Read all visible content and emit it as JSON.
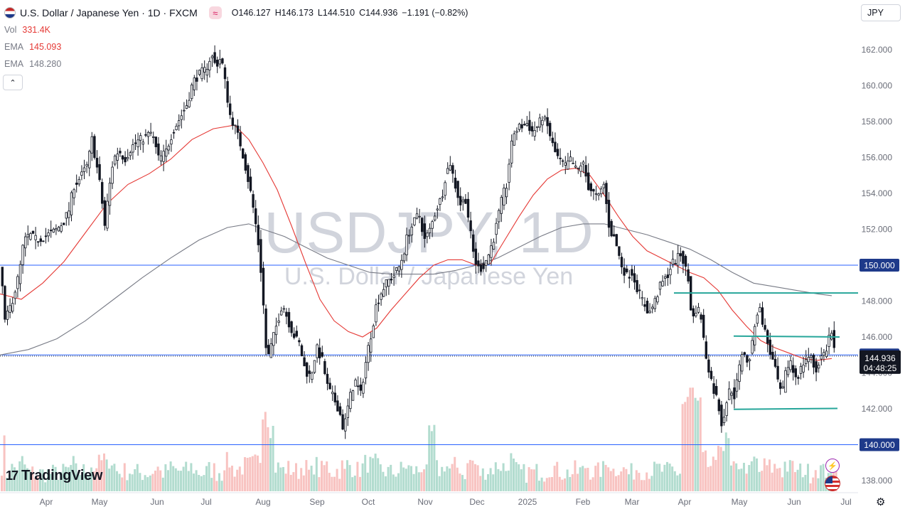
{
  "header": {
    "title": "U.S. Dollar / Japanese Yen · 1D · FXCM",
    "ohlc": [
      {
        "key": "O",
        "value": "146.127"
      },
      {
        "key": "H",
        "value": "146.173"
      },
      {
        "key": "L",
        "value": "144.510"
      },
      {
        "key": "C",
        "value": "144.936"
      }
    ],
    "change": "−1.191 (−0.82%)",
    "currency_button": "JPY",
    "collapse_glyph": "⌃"
  },
  "indicators": [
    {
      "label": "Vol",
      "value": "331.4K",
      "color": "#e53935"
    },
    {
      "label": "EMA",
      "value": "145.093",
      "color": "#e53935"
    },
    {
      "label": "EMA",
      "value": "148.280",
      "color": "#787b86"
    }
  ],
  "watermark": {
    "symbol": "USDJPY, 1D",
    "name": "U.S. Dollar / Japanese Yen"
  },
  "branding": {
    "logo_mark": "17",
    "logo_text": "TradingView"
  },
  "icons": {
    "bolt": "bolt-icon",
    "flag": "us-flag-icon",
    "settings": "gear-icon"
  },
  "colors": {
    "up": "#089981",
    "down": "#f23645",
    "ema_fast": "#e53935",
    "ema_slow": "#787b86",
    "hline": "#2962ff",
    "trend": "#26a69a",
    "price_tag": "#131722",
    "level_tag": "#1e3a8a"
  },
  "chart_data": {
    "type": "candlestick",
    "symbol": "USDJPY",
    "interval": "1D",
    "y_ticks": [
      "162.000",
      "160.000",
      "158.000",
      "156.000",
      "154.000",
      "152.000",
      "150.000",
      "148.000",
      "146.000",
      "144.000",
      "142.000",
      "140.000",
      "138.000"
    ],
    "x_ticks": [
      "Apr",
      "May",
      "Jun",
      "Jul",
      "Aug",
      "Sep",
      "Oct",
      "Nov",
      "Dec",
      "2025",
      "Feb",
      "Mar",
      "Apr",
      "May",
      "Jun",
      "Jul"
    ],
    "ylim": [
      137.8,
      164.0
    ],
    "price_path": [
      [
        0,
        150.1
      ],
      [
        5,
        146.8
      ],
      [
        10,
        147.3
      ],
      [
        18,
        148.3
      ],
      [
        26,
        149.6
      ],
      [
        32,
        151.3
      ],
      [
        40,
        151.7
      ],
      [
        50,
        151.4
      ],
      [
        62,
        151.6
      ],
      [
        76,
        151.9
      ],
      [
        88,
        152.4
      ],
      [
        96,
        153.1
      ],
      [
        102,
        154.4
      ],
      [
        112,
        154.9
      ],
      [
        122,
        155.6
      ],
      [
        128,
        157.0
      ],
      [
        134,
        155.7
      ],
      [
        140,
        154.3
      ],
      [
        146,
        152.2
      ],
      [
        150,
        153.6
      ],
      [
        158,
        155.9
      ],
      [
        166,
        156.4
      ],
      [
        174,
        155.9
      ],
      [
        184,
        156.6
      ],
      [
        192,
        156.9
      ],
      [
        202,
        157.1
      ],
      [
        212,
        157.4
      ],
      [
        222,
        155.9
      ],
      [
        232,
        156.3
      ],
      [
        242,
        157.5
      ],
      [
        252,
        158.2
      ],
      [
        262,
        159.0
      ],
      [
        270,
        160.2
      ],
      [
        278,
        160.6
      ],
      [
        288,
        160.9
      ],
      [
        296,
        161.7
      ],
      [
        302,
        161.1
      ],
      [
        310,
        161.6
      ],
      [
        316,
        160.0
      ],
      [
        322,
        158.4
      ],
      [
        330,
        157.6
      ],
      [
        338,
        156.6
      ],
      [
        346,
        155.1
      ],
      [
        352,
        153.9
      ],
      [
        358,
        152.4
      ],
      [
        364,
        150.6
      ],
      [
        370,
        147.3
      ],
      [
        374,
        144.6
      ],
      [
        380,
        145.5
      ],
      [
        388,
        146.7
      ],
      [
        396,
        147.9
      ],
      [
        404,
        146.9
      ],
      [
        412,
        146.1
      ],
      [
        420,
        145.6
      ],
      [
        428,
        144.1
      ],
      [
        436,
        143.8
      ],
      [
        444,
        145.4
      ],
      [
        452,
        144.7
      ],
      [
        460,
        143.1
      ],
      [
        468,
        142.6
      ],
      [
        476,
        141.9
      ],
      [
        482,
        140.8
      ],
      [
        490,
        142.5
      ],
      [
        498,
        143.6
      ],
      [
        506,
        142.8
      ],
      [
        512,
        144.3
      ],
      [
        518,
        145.7
      ],
      [
        522,
        146.4
      ],
      [
        528,
        147.8
      ],
      [
        536,
        148.6
      ],
      [
        544,
        149.1
      ],
      [
        552,
        149.4
      ],
      [
        560,
        149.9
      ],
      [
        566,
        150.6
      ],
      [
        572,
        151.7
      ],
      [
        580,
        152.3
      ],
      [
        588,
        152.9
      ],
      [
        596,
        151.4
      ],
      [
        604,
        152.0
      ],
      [
        612,
        153.1
      ],
      [
        620,
        153.8
      ],
      [
        626,
        155.1
      ],
      [
        632,
        155.7
      ],
      [
        638,
        154.6
      ],
      [
        646,
        153.4
      ],
      [
        654,
        153.7
      ],
      [
        660,
        151.9
      ],
      [
        666,
        150.3
      ],
      [
        672,
        149.8
      ],
      [
        678,
        149.9
      ],
      [
        686,
        150.6
      ],
      [
        694,
        151.6
      ],
      [
        700,
        152.8
      ],
      [
        706,
        153.9
      ],
      [
        712,
        154.5
      ],
      [
        716,
        156.2
      ],
      [
        722,
        157.4
      ],
      [
        730,
        157.7
      ],
      [
        740,
        157.9
      ],
      [
        748,
        157.4
      ],
      [
        756,
        157.8
      ],
      [
        762,
        158.3
      ],
      [
        770,
        157.6
      ],
      [
        778,
        156.4
      ],
      [
        786,
        155.8
      ],
      [
        794,
        155.5
      ],
      [
        802,
        155.9
      ],
      [
        810,
        155.2
      ],
      [
        818,
        155.8
      ],
      [
        826,
        154.4
      ],
      [
        832,
        154.1
      ],
      [
        840,
        153.7
      ],
      [
        848,
        154.5
      ],
      [
        856,
        152.0
      ],
      [
        864,
        151.4
      ],
      [
        872,
        150.1
      ],
      [
        880,
        149.4
      ],
      [
        888,
        149.6
      ],
      [
        896,
        148.6
      ],
      [
        904,
        147.9
      ],
      [
        912,
        147.3
      ],
      [
        920,
        148.0
      ],
      [
        928,
        148.9
      ],
      [
        936,
        149.3
      ],
      [
        944,
        150.1
      ],
      [
        950,
        150.3
      ],
      [
        956,
        150.6
      ],
      [
        962,
        150.0
      ],
      [
        968,
        148.9
      ],
      [
        972,
        146.8
      ],
      [
        978,
        147.6
      ],
      [
        984,
        147.4
      ],
      [
        990,
        145.3
      ],
      [
        996,
        144.2
      ],
      [
        1002,
        143.1
      ],
      [
        1008,
        142.5
      ],
      [
        1014,
        141.1
      ],
      [
        1020,
        142.3
      ],
      [
        1026,
        143.2
      ],
      [
        1032,
        142.7
      ],
      [
        1038,
        144.1
      ],
      [
        1044,
        145.5
      ],
      [
        1050,
        144.4
      ],
      [
        1056,
        145.3
      ],
      [
        1062,
        147.3
      ],
      [
        1068,
        147.5
      ],
      [
        1074,
        146.4
      ],
      [
        1080,
        145.4
      ],
      [
        1086,
        144.6
      ],
      [
        1092,
        143.7
      ],
      [
        1098,
        142.6
      ],
      [
        1104,
        144.0
      ],
      [
        1110,
        144.8
      ],
      [
        1116,
        143.8
      ],
      [
        1122,
        143.9
      ],
      [
        1128,
        144.5
      ],
      [
        1134,
        144.9
      ],
      [
        1140,
        144.8
      ],
      [
        1146,
        144.0
      ],
      [
        1152,
        144.8
      ],
      [
        1158,
        145.1
      ],
      [
        1162,
        145.4
      ],
      [
        1166,
        146.3
      ],
      [
        1170,
        146.1
      ],
      [
        1173,
        144.9
      ]
    ],
    "ema_fast_path": [
      [
        0,
        148.4
      ],
      [
        30,
        148.1
      ],
      [
        60,
        149.0
      ],
      [
        90,
        150.2
      ],
      [
        120,
        151.8
      ],
      [
        150,
        153.4
      ],
      [
        180,
        154.5
      ],
      [
        210,
        155.1
      ],
      [
        240,
        155.9
      ],
      [
        270,
        157.0
      ],
      [
        300,
        157.6
      ],
      [
        330,
        157.8
      ],
      [
        350,
        157.0
      ],
      [
        370,
        155.7
      ],
      [
        390,
        154.2
      ],
      [
        410,
        152.2
      ],
      [
        430,
        150.1
      ],
      [
        450,
        148.1
      ],
      [
        470,
        146.9
      ],
      [
        490,
        146.3
      ],
      [
        510,
        146.0
      ],
      [
        530,
        146.5
      ],
      [
        550,
        147.5
      ],
      [
        570,
        148.4
      ],
      [
        590,
        149.3
      ],
      [
        610,
        150.0
      ],
      [
        630,
        150.3
      ],
      [
        650,
        150.3
      ],
      [
        670,
        150.0
      ],
      [
        690,
        150.1
      ],
      [
        710,
        151.4
      ],
      [
        730,
        152.7
      ],
      [
        750,
        153.9
      ],
      [
        770,
        154.8
      ],
      [
        790,
        155.3
      ],
      [
        810,
        155.4
      ],
      [
        830,
        155.0
      ],
      [
        850,
        153.9
      ],
      [
        870,
        152.7
      ],
      [
        890,
        151.6
      ],
      [
        910,
        150.8
      ],
      [
        930,
        150.4
      ],
      [
        950,
        150.0
      ],
      [
        970,
        149.6
      ],
      [
        990,
        149.3
      ],
      [
        1010,
        148.6
      ],
      [
        1030,
        147.5
      ],
      [
        1050,
        146.6
      ],
      [
        1070,
        145.8
      ],
      [
        1090,
        145.4
      ],
      [
        1110,
        145.1
      ],
      [
        1130,
        144.8
      ],
      [
        1150,
        144.7
      ],
      [
        1170,
        144.8
      ]
    ],
    "ema_slow_path": [
      [
        0,
        145.0
      ],
      [
        40,
        145.3
      ],
      [
        80,
        145.9
      ],
      [
        120,
        146.9
      ],
      [
        160,
        148.1
      ],
      [
        200,
        149.3
      ],
      [
        240,
        150.4
      ],
      [
        280,
        151.4
      ],
      [
        320,
        152.1
      ],
      [
        350,
        152.3
      ],
      [
        370,
        152.0
      ],
      [
        400,
        151.6
      ],
      [
        430,
        151.0
      ],
      [
        460,
        150.4
      ],
      [
        490,
        150.0
      ],
      [
        520,
        149.6
      ],
      [
        550,
        149.5
      ],
      [
        580,
        149.5
      ],
      [
        610,
        149.5
      ],
      [
        640,
        149.7
      ],
      [
        670,
        150.0
      ],
      [
        700,
        150.4
      ],
      [
        730,
        151.0
      ],
      [
        760,
        151.6
      ],
      [
        790,
        152.1
      ],
      [
        820,
        152.3
      ],
      [
        850,
        152.3
      ],
      [
        880,
        152.0
      ],
      [
        910,
        151.7
      ],
      [
        940,
        151.3
      ],
      [
        970,
        150.9
      ],
      [
        1000,
        150.3
      ],
      [
        1030,
        149.6
      ],
      [
        1060,
        149.0
      ],
      [
        1090,
        148.8
      ],
      [
        1120,
        148.6
      ],
      [
        1150,
        148.4
      ],
      [
        1170,
        148.3
      ]
    ],
    "hlines": [
      {
        "price": 150.0,
        "label": "150.000",
        "color": "#2962ff"
      },
      {
        "price": 145.0,
        "label": "145.000",
        "color": "#2962ff"
      },
      {
        "price": 140.0,
        "label": "140.000",
        "color": "#2962ff"
      }
    ],
    "current_price": {
      "price": 144.936,
      "label": "144.936",
      "countdown": "04:48:25"
    },
    "trendlines": [
      {
        "x1": 948,
        "y1": 148.45,
        "x2": 1207,
        "y2": 148.45
      },
      {
        "x1": 1032,
        "y1": 146.05,
        "x2": 1181,
        "y2": 146.0
      },
      {
        "x1": 1032,
        "y1": 141.97,
        "x2": 1178,
        "y2": 142.02
      }
    ]
  }
}
